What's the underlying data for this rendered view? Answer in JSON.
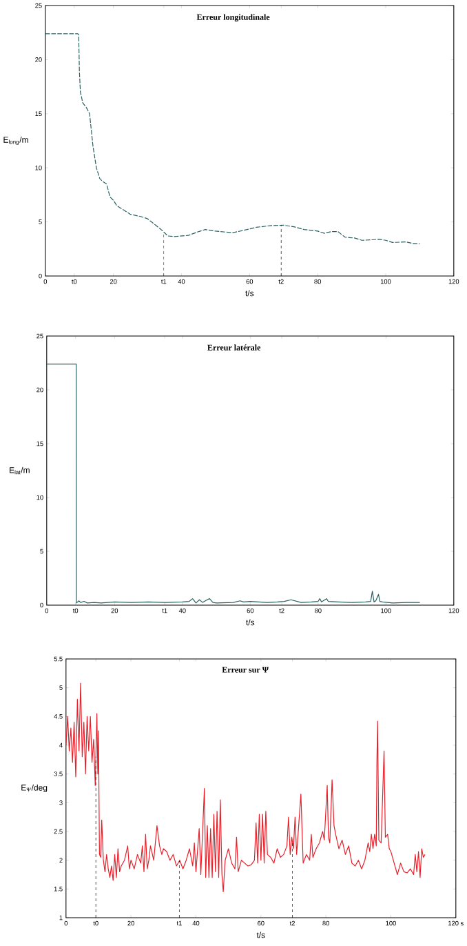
{
  "chart_data": [
    {
      "type": "line",
      "title": "Erreur longitudinale",
      "xlabel": "t/s",
      "ylabel": "E$_{long}$/m",
      "line_style": "dashed",
      "xlim": [
        0,
        120
      ],
      "ylim": [
        0,
        25
      ],
      "xticks": [
        0,
        {
          "value": 8.5,
          "label": "t0"
        },
        20,
        {
          "value": 34.8,
          "label": "t1"
        },
        40,
        60,
        {
          "value": 69.3,
          "label": "t2"
        },
        80,
        100,
        120
      ],
      "yticks": [
        0,
        5,
        10,
        15,
        20,
        25
      ],
      "ref_lines": [
        {
          "axis": "x",
          "value": 34.8
        },
        {
          "axis": "x",
          "value": 69.3
        }
      ],
      "x": [
        0,
        9.5,
        9.8,
        10,
        10.3,
        11,
        12,
        13,
        14,
        15,
        16,
        17,
        18,
        19,
        20,
        21,
        23,
        25,
        28,
        30,
        32,
        34,
        35,
        36,
        38,
        42,
        45,
        47,
        50,
        55,
        58,
        62,
        66,
        70,
        73,
        76,
        80,
        82,
        84,
        86,
        88,
        91,
        93,
        96,
        98,
        100,
        102,
        106,
        108,
        110
      ],
      "series": [
        {
          "color": "#2a5f5f",
          "values": [
            22.4,
            22.4,
            22.3,
            19,
            17,
            16,
            15.6,
            15,
            12,
            10,
            9,
            8.7,
            8.5,
            7.3,
            7.0,
            6.5,
            6.1,
            5.7,
            5.5,
            5.3,
            4.8,
            4.3,
            4.0,
            3.7,
            3.65,
            3.75,
            4.1,
            4.3,
            4.15,
            4.0,
            4.2,
            4.5,
            4.65,
            4.7,
            4.55,
            4.3,
            4.15,
            3.95,
            4.1,
            4.1,
            3.6,
            3.5,
            3.3,
            3.35,
            3.4,
            3.3,
            3.1,
            3.15,
            3.0,
            2.98
          ]
        }
      ]
    },
    {
      "type": "line",
      "title": "Erreur latérale",
      "xlabel": "t/s",
      "ylabel": "E$_{lat}$/m",
      "line_style": "solid",
      "xlim": [
        0,
        120
      ],
      "ylim": [
        0,
        25
      ],
      "xticks": [
        0,
        {
          "value": 8.5,
          "label": "t0"
        },
        20,
        {
          "value": 34.8,
          "label": "t1"
        },
        40,
        60,
        {
          "value": 69.3,
          "label": "t2"
        },
        80,
        100,
        120
      ],
      "yticks": [
        0,
        5,
        10,
        15,
        20,
        25
      ],
      "x": [
        0,
        8.7,
        8.75,
        9.5,
        10,
        11,
        12,
        14,
        16,
        18,
        20,
        25,
        30,
        35,
        40,
        42,
        43,
        44,
        45,
        46,
        47,
        48,
        49,
        50,
        55,
        57,
        58,
        60,
        65,
        68,
        70,
        72,
        75,
        78,
        80,
        80.5,
        81,
        82.5,
        83,
        86,
        90,
        94,
        95.5,
        96,
        96.5,
        97,
        97.8,
        98.2,
        99,
        102,
        106,
        110
      ],
      "series": [
        {
          "color": "#2a5f5f",
          "values": [
            22.4,
            22.4,
            0.2,
            0.4,
            0.25,
            0.35,
            0.2,
            0.25,
            0.2,
            0.25,
            0.3,
            0.25,
            0.3,
            0.25,
            0.3,
            0.35,
            0.6,
            0.2,
            0.5,
            0.25,
            0.45,
            0.6,
            0.25,
            0.2,
            0.25,
            0.4,
            0.3,
            0.35,
            0.25,
            0.3,
            0.35,
            0.5,
            0.25,
            0.3,
            0.35,
            0.6,
            0.3,
            0.6,
            0.35,
            0.3,
            0.25,
            0.3,
            0.35,
            1.3,
            0.3,
            0.4,
            1.0,
            0.35,
            0.3,
            0.2,
            0.25,
            0.25
          ]
        }
      ]
    },
    {
      "type": "line",
      "title": "Erreur sur Ψ",
      "xlabel": "t/s",
      "ylabel": "E$_{Ψ}$/deg",
      "line_style": "solid",
      "xlim": [
        0,
        120
      ],
      "ylim": [
        1,
        5.5
      ],
      "xticks": [
        0,
        {
          "value": 9.2,
          "label": "t0"
        },
        20,
        {
          "value": 34.9,
          "label": "t1"
        },
        40,
        60,
        {
          "value": 69.7,
          "label": "t2"
        },
        80,
        100,
        {
          "value": 120,
          "label": "120 s"
        }
      ],
      "yticks": [
        1,
        1.5,
        2,
        2.5,
        3,
        3.5,
        4,
        4.5,
        5,
        5.5
      ],
      "ref_lines": [
        {
          "axis": "x",
          "value": 9.2
        },
        {
          "axis": "x",
          "value": 34.9
        },
        {
          "axis": "x",
          "value": 69.7
        }
      ],
      "x": [
        0,
        0.5,
        1,
        1.5,
        2,
        2.5,
        3,
        3.5,
        4,
        4.5,
        5,
        5.5,
        6,
        6.5,
        7,
        7.5,
        8,
        8.5,
        9,
        9.5,
        9.8,
        10,
        10.3,
        10.7,
        11,
        11.5,
        12,
        12.5,
        13,
        13.5,
        14,
        14.5,
        15,
        15.5,
        16,
        16.5,
        17,
        18,
        19,
        19.5,
        20,
        21,
        22,
        23,
        23.5,
        24,
        24.5,
        25,
        25.5,
        26,
        27,
        28,
        28.8,
        29.5,
        30,
        31,
        32,
        33,
        34,
        35,
        36,
        37,
        38,
        39,
        39.5,
        40,
        41,
        41.5,
        42.6,
        43,
        43.5,
        44,
        44.5,
        45,
        45.5,
        46,
        46.5,
        47,
        47.5,
        48,
        48.4,
        49,
        50,
        51,
        52,
        52.5,
        53,
        54,
        55,
        56,
        57,
        58,
        58.5,
        59,
        59.5,
        60,
        60.5,
        61,
        61.5,
        62,
        63,
        64,
        65,
        66,
        67,
        68,
        68.5,
        69,
        69.5,
        70,
        70.5,
        71,
        72.3,
        73,
        74,
        75,
        75.5,
        76,
        77,
        78,
        79,
        79.5,
        80.4,
        80.8,
        81.2,
        81.9,
        82.5,
        83,
        84,
        85,
        86,
        87,
        88,
        89,
        90,
        91,
        92,
        93,
        93.5,
        94,
        94.5,
        95,
        95.5,
        95.7,
        95.9,
        96.3,
        97,
        97.9,
        98.3,
        99,
        99.5,
        100,
        101,
        102,
        103,
        104,
        105,
        106,
        107,
        107.5,
        108,
        108.5,
        109,
        109.5,
        110,
        110.5
      ],
      "series": [
        {
          "color": "#e8202a",
          "values": [
            4.0,
            4.5,
            3.9,
            4.3,
            3.7,
            4.4,
            3.45,
            4.8,
            3.9,
            5.08,
            3.8,
            4.4,
            3.5,
            4.5,
            3.9,
            4.5,
            3.7,
            4.1,
            3.3,
            4.55,
            3.5,
            4.25,
            2.1,
            2.05,
            2.7,
            2.0,
            1.8,
            2.1,
            1.85,
            1.7,
            1.9,
            1.65,
            2.1,
            1.7,
            2.2,
            1.8,
            1.9,
            2.0,
            2.25,
            1.85,
            2.0,
            1.85,
            2.1,
            1.95,
            2.25,
            1.8,
            2.45,
            1.85,
            2.0,
            2.25,
            2.0,
            2.6,
            2.25,
            2.1,
            2.2,
            2.15,
            2.0,
            2.1,
            1.9,
            2.0,
            1.85,
            2.0,
            2.2,
            1.9,
            2.3,
            1.8,
            2.55,
            1.75,
            3.25,
            1.7,
            2.6,
            1.7,
            2.55,
            1.7,
            2.8,
            1.8,
            2.85,
            1.7,
            3.05,
            1.75,
            1.45,
            2.0,
            2.2,
            1.95,
            1.85,
            2.4,
            1.8,
            2.0,
            1.95,
            1.9,
            1.92,
            2.0,
            2.65,
            1.95,
            2.8,
            2.0,
            2.8,
            1.95,
            2.85,
            2.1,
            2.05,
            1.95,
            2.2,
            2.05,
            2.1,
            2.25,
            2.75,
            2.1,
            2.4,
            2.2,
            2.75,
            2.1,
            3.15,
            1.95,
            2.1,
            2.0,
            2.45,
            2.05,
            2.2,
            2.3,
            2.5,
            2.35,
            3.3,
            2.4,
            2.3,
            3.4,
            2.6,
            2.45,
            2.2,
            2.35,
            2.1,
            2.25,
            1.95,
            1.9,
            2.0,
            1.85,
            2.0,
            2.3,
            2.15,
            2.45,
            2.2,
            2.45,
            2.25,
            3.7,
            4.42,
            2.35,
            2.3,
            3.9,
            2.4,
            2.45,
            2.2,
            2.15,
            1.95,
            1.75,
            1.95,
            1.8,
            1.78,
            1.85,
            1.75,
            2.1,
            1.8,
            2.15,
            1.7,
            2.2,
            2.05,
            2.1
          ]
        }
      ]
    }
  ]
}
